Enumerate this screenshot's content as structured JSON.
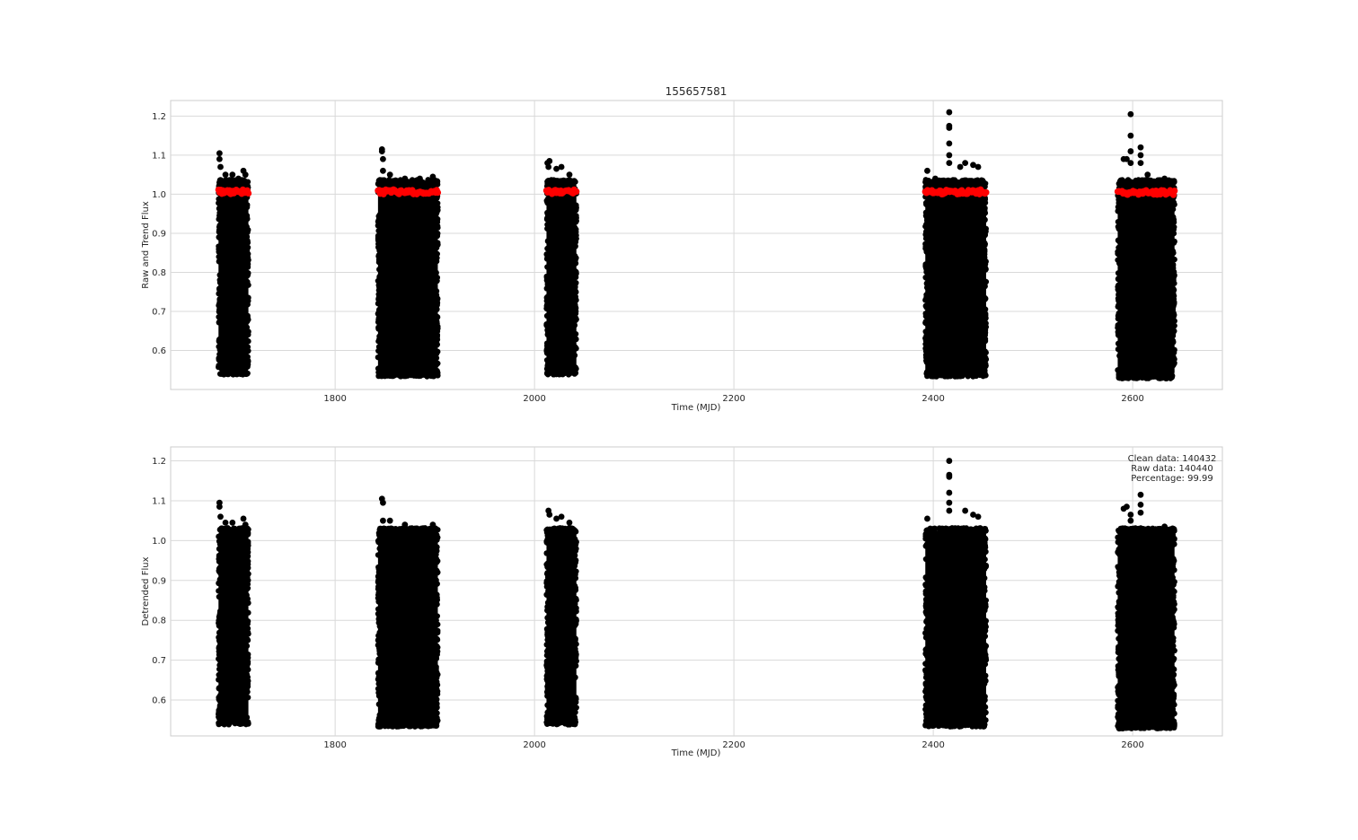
{
  "figure": {
    "title": "155657581"
  },
  "chart_data": [
    {
      "type": "scatter",
      "title": "155657581",
      "xlabel": "Time (MJD)",
      "ylabel": "Raw and Trend Flux",
      "xlim": [
        1635,
        2690
      ],
      "ylim": [
        0.5,
        1.24
      ],
      "xticks": [
        1800,
        2000,
        2200,
        2400,
        2600
      ],
      "yticks": [
        0.6,
        0.7,
        0.8,
        0.9,
        1.0,
        1.1,
        1.2
      ],
      "grid": true,
      "series": [
        {
          "color": "#000000",
          "marker": "circle",
          "segments": [
            {
              "x": [
                1683,
                1713
              ],
              "y": [
                0.545,
                1.03
              ]
            },
            {
              "x": [
                1843,
                1903
              ],
              "y": [
                0.54,
                1.03
              ]
            },
            {
              "x": [
                2012,
                2042
              ],
              "y": [
                0.545,
                1.03
              ]
            },
            {
              "x": [
                2392,
                2453
              ],
              "y": [
                0.54,
                1.03
              ]
            },
            {
              "x": [
                2585,
                2642
              ],
              "y": [
                0.535,
                1.03
              ]
            }
          ],
          "outliers": [
            {
              "x": 1684,
              "y": 1.105
            },
            {
              "x": 1684,
              "y": 1.09
            },
            {
              "x": 1685,
              "y": 1.07
            },
            {
              "x": 1690,
              "y": 1.05
            },
            {
              "x": 1697,
              "y": 1.05
            },
            {
              "x": 1703,
              "y": 1.04
            },
            {
              "x": 1708,
              "y": 1.06
            },
            {
              "x": 1710,
              "y": 1.05
            },
            {
              "x": 1847,
              "y": 1.115
            },
            {
              "x": 1847,
              "y": 1.11
            },
            {
              "x": 1848,
              "y": 1.09
            },
            {
              "x": 1848,
              "y": 1.06
            },
            {
              "x": 1855,
              "y": 1.05
            },
            {
              "x": 1870,
              "y": 1.04
            },
            {
              "x": 1885,
              "y": 1.04
            },
            {
              "x": 1898,
              "y": 1.045
            },
            {
              "x": 2013,
              "y": 1.08
            },
            {
              "x": 2015,
              "y": 1.085
            },
            {
              "x": 2014,
              "y": 1.07
            },
            {
              "x": 2022,
              "y": 1.065
            },
            {
              "x": 2027,
              "y": 1.07
            },
            {
              "x": 2035,
              "y": 1.05
            },
            {
              "x": 2394,
              "y": 1.06
            },
            {
              "x": 2402,
              "y": 1.04
            },
            {
              "x": 2416,
              "y": 1.21
            },
            {
              "x": 2416,
              "y": 1.175
            },
            {
              "x": 2416,
              "y": 1.17
            },
            {
              "x": 2416,
              "y": 1.13
            },
            {
              "x": 2416,
              "y": 1.1
            },
            {
              "x": 2416,
              "y": 1.08
            },
            {
              "x": 2427,
              "y": 1.07
            },
            {
              "x": 2432,
              "y": 1.08
            },
            {
              "x": 2440,
              "y": 1.075
            },
            {
              "x": 2445,
              "y": 1.07
            },
            {
              "x": 2591,
              "y": 1.09
            },
            {
              "x": 2594,
              "y": 1.09
            },
            {
              "x": 2598,
              "y": 1.205
            },
            {
              "x": 2598,
              "y": 1.15
            },
            {
              "x": 2598,
              "y": 1.11
            },
            {
              "x": 2598,
              "y": 1.08
            },
            {
              "x": 2608,
              "y": 1.12
            },
            {
              "x": 2608,
              "y": 1.1
            },
            {
              "x": 2608,
              "y": 1.08
            },
            {
              "x": 2615,
              "y": 1.05
            },
            {
              "x": 2632,
              "y": 1.04
            }
          ]
        },
        {
          "color": "#ff0000",
          "marker": "circle",
          "segments": [
            {
              "x": [
                1683,
                1713
              ],
              "y": [
                1.0,
                1.012
              ]
            },
            {
              "x": [
                1843,
                1903
              ],
              "y": [
                1.0,
                1.012
              ]
            },
            {
              "x": [
                2012,
                2042
              ],
              "y": [
                1.0,
                1.012
              ]
            },
            {
              "x": [
                2392,
                2453
              ],
              "y": [
                1.0,
                1.012
              ]
            },
            {
              "x": [
                2585,
                2642
              ],
              "y": [
                0.998,
                1.01
              ]
            }
          ]
        }
      ]
    },
    {
      "type": "scatter",
      "title": "",
      "xlabel": "Time (MJD)",
      "ylabel": "Detrended Flux",
      "xlim": [
        1635,
        2690
      ],
      "ylim": [
        0.51,
        1.235
      ],
      "xticks": [
        1800,
        2000,
        2200,
        2400,
        2600
      ],
      "yticks": [
        0.6,
        0.7,
        0.8,
        0.9,
        1.0,
        1.1,
        1.2
      ],
      "grid": true,
      "series": [
        {
          "color": "#000000",
          "marker": "circle",
          "segments": [
            {
              "x": [
                1683,
                1713
              ],
              "y": [
                0.545,
                1.025
              ]
            },
            {
              "x": [
                1843,
                1903
              ],
              "y": [
                0.54,
                1.025
              ]
            },
            {
              "x": [
                2012,
                2042
              ],
              "y": [
                0.545,
                1.025
              ]
            },
            {
              "x": [
                2392,
                2453
              ],
              "y": [
                0.54,
                1.025
              ]
            },
            {
              "x": [
                2585,
                2642
              ],
              "y": [
                0.535,
                1.025
              ]
            }
          ],
          "outliers": [
            {
              "x": 1684,
              "y": 1.095
            },
            {
              "x": 1684,
              "y": 1.085
            },
            {
              "x": 1685,
              "y": 1.06
            },
            {
              "x": 1690,
              "y": 1.045
            },
            {
              "x": 1697,
              "y": 1.045
            },
            {
              "x": 1708,
              "y": 1.055
            },
            {
              "x": 1710,
              "y": 1.04
            },
            {
              "x": 1847,
              "y": 1.105
            },
            {
              "x": 1848,
              "y": 1.095
            },
            {
              "x": 1848,
              "y": 1.05
            },
            {
              "x": 1855,
              "y": 1.05
            },
            {
              "x": 1870,
              "y": 1.04
            },
            {
              "x": 1898,
              "y": 1.04
            },
            {
              "x": 2014,
              "y": 1.075
            },
            {
              "x": 2015,
              "y": 1.065
            },
            {
              "x": 2022,
              "y": 1.055
            },
            {
              "x": 2027,
              "y": 1.06
            },
            {
              "x": 2035,
              "y": 1.045
            },
            {
              "x": 2394,
              "y": 1.055
            },
            {
              "x": 2416,
              "y": 1.2
            },
            {
              "x": 2416,
              "y": 1.165
            },
            {
              "x": 2416,
              "y": 1.16
            },
            {
              "x": 2416,
              "y": 1.12
            },
            {
              "x": 2416,
              "y": 1.095
            },
            {
              "x": 2416,
              "y": 1.075
            },
            {
              "x": 2432,
              "y": 1.075
            },
            {
              "x": 2440,
              "y": 1.065
            },
            {
              "x": 2445,
              "y": 1.06
            },
            {
              "x": 2591,
              "y": 1.08
            },
            {
              "x": 2594,
              "y": 1.085
            },
            {
              "x": 2598,
              "y": 1.065
            },
            {
              "x": 2598,
              "y": 1.05
            },
            {
              "x": 2608,
              "y": 1.115
            },
            {
              "x": 2608,
              "y": 1.09
            },
            {
              "x": 2608,
              "y": 1.07
            },
            {
              "x": 2632,
              "y": 1.035
            }
          ]
        }
      ],
      "annotation": [
        "Clean data: 140432",
        "Raw data: 140440",
        "Percentage: 99.99"
      ]
    }
  ]
}
